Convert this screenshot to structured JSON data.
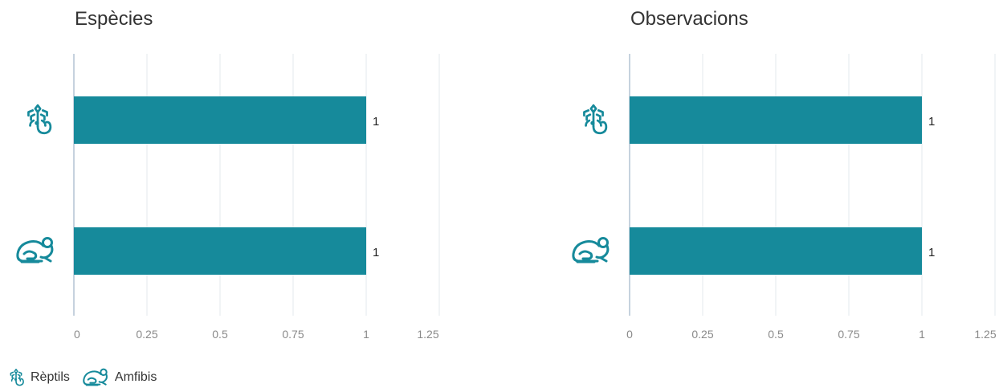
{
  "colors": {
    "bar": "#168a9b",
    "grid": "#e3e8ec",
    "axis": "#c6d2de",
    "tick": "#8a8a8a",
    "title": "#333333",
    "icon": "#168a9b"
  },
  "chart_data": [
    {
      "type": "bar",
      "orientation": "horizontal",
      "title": "Espècies",
      "categories": [
        "Rèptils",
        "Amfibis"
      ],
      "category_icons": [
        "lizard-icon",
        "frog-icon"
      ],
      "values": [
        1,
        1
      ],
      "data_labels": [
        "1",
        "1"
      ],
      "xlim": [
        0,
        1.25
      ],
      "xticks": [
        "0",
        "0.25",
        "0.5",
        "0.75",
        "1",
        "1.25"
      ],
      "grid": true
    },
    {
      "type": "bar",
      "orientation": "horizontal",
      "title": "Observacions",
      "categories": [
        "Rèptils",
        "Amfibis"
      ],
      "category_icons": [
        "lizard-icon",
        "frog-icon"
      ],
      "values": [
        1,
        1
      ],
      "data_labels": [
        "1",
        "1"
      ],
      "xlim": [
        0,
        1.25
      ],
      "xticks": [
        "0",
        "0.25",
        "0.5",
        "0.75",
        "1",
        "1.25"
      ],
      "grid": true
    }
  ],
  "legend": {
    "position": "bottom-left",
    "items": [
      {
        "label": "Rèptils",
        "icon": "lizard-icon"
      },
      {
        "label": "Amfibis",
        "icon": "frog-icon"
      }
    ]
  }
}
